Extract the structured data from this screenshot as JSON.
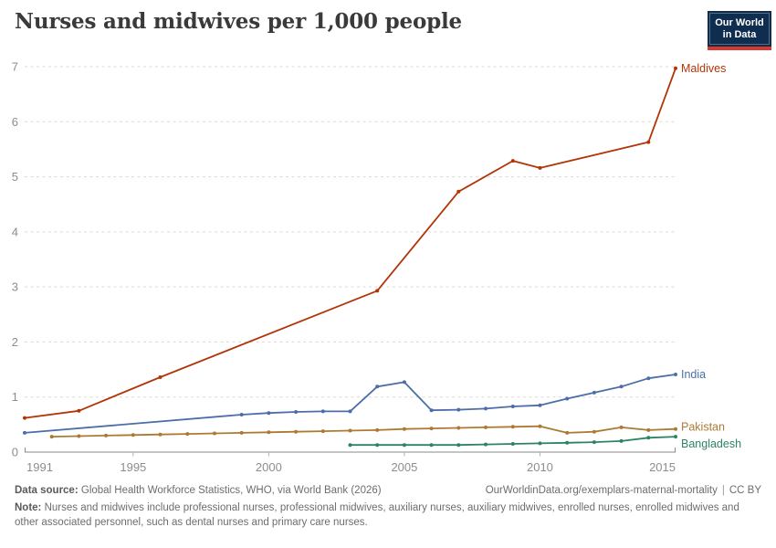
{
  "header": {
    "title": "Nurses and midwives per 1,000 people"
  },
  "logo": {
    "line1": "Our World",
    "line2": "in Data",
    "bg_color": "#0f2d4e",
    "bar_color": "#d9382e"
  },
  "chart_data": {
    "type": "line",
    "title": "Nurses and midwives per 1,000 people",
    "xlabel": "",
    "ylabel": "",
    "xlim": [
      1991,
      2015
    ],
    "ylim": [
      0,
      7
    ],
    "xticks": [
      1991,
      1995,
      2000,
      2005,
      2010,
      2015
    ],
    "yticks": [
      0,
      1,
      2,
      3,
      4,
      5,
      6,
      7
    ],
    "grid": "dashed-horizontal",
    "legend_position": "right-end-labels",
    "series": [
      {
        "name": "Maldives",
        "color": "#b13507",
        "points": [
          [
            1991,
            0.62
          ],
          [
            1993,
            0.75
          ],
          [
            1996,
            1.36
          ],
          [
            2004,
            2.93
          ],
          [
            2007,
            4.73
          ],
          [
            2009,
            5.29
          ],
          [
            2010,
            5.16
          ],
          [
            2014,
            5.63
          ],
          [
            2015,
            6.97
          ]
        ]
      },
      {
        "name": "India",
        "color": "#4c6ea8",
        "points": [
          [
            1991,
            0.35
          ],
          [
            1999,
            0.68
          ],
          [
            2000,
            0.71
          ],
          [
            2001,
            0.73
          ],
          [
            2002,
            0.74
          ],
          [
            2003,
            0.74
          ],
          [
            2004,
            1.19
          ],
          [
            2005,
            1.27
          ],
          [
            2006,
            0.76
          ],
          [
            2007,
            0.77
          ],
          [
            2008,
            0.79
          ],
          [
            2009,
            0.83
          ],
          [
            2010,
            0.85
          ],
          [
            2011,
            0.97
          ],
          [
            2012,
            1.08
          ],
          [
            2013,
            1.19
          ],
          [
            2014,
            1.34
          ],
          [
            2015,
            1.41
          ]
        ]
      },
      {
        "name": "Pakistan",
        "color": "#ab7b34",
        "points": [
          [
            1992,
            0.28
          ],
          [
            1993,
            0.29
          ],
          [
            1994,
            0.3
          ],
          [
            1995,
            0.31
          ],
          [
            1996,
            0.32
          ],
          [
            1997,
            0.33
          ],
          [
            1998,
            0.34
          ],
          [
            1999,
            0.35
          ],
          [
            2000,
            0.36
          ],
          [
            2001,
            0.37
          ],
          [
            2002,
            0.38
          ],
          [
            2003,
            0.39
          ],
          [
            2004,
            0.4
          ],
          [
            2005,
            0.42
          ],
          [
            2006,
            0.43
          ],
          [
            2007,
            0.44
          ],
          [
            2008,
            0.45
          ],
          [
            2009,
            0.46
          ],
          [
            2010,
            0.47
          ],
          [
            2011,
            0.35
          ],
          [
            2012,
            0.37
          ],
          [
            2013,
            0.45
          ],
          [
            2014,
            0.4
          ],
          [
            2015,
            0.42
          ]
        ]
      },
      {
        "name": "Bangladesh",
        "color": "#2c8465",
        "points": [
          [
            2003,
            0.13
          ],
          [
            2004,
            0.13
          ],
          [
            2005,
            0.13
          ],
          [
            2006,
            0.13
          ],
          [
            2007,
            0.13
          ],
          [
            2008,
            0.14
          ],
          [
            2009,
            0.15
          ],
          [
            2010,
            0.16
          ],
          [
            2011,
            0.17
          ],
          [
            2012,
            0.18
          ],
          [
            2013,
            0.2
          ],
          [
            2014,
            0.26
          ],
          [
            2015,
            0.28
          ]
        ]
      }
    ]
  },
  "footer": {
    "source_label": "Data source:",
    "source_text": "Global Health Workforce Statistics, WHO, via World Bank (2026)",
    "url": "OurWorldinData.org/exemplars-maternal-mortality",
    "divider": "|",
    "license": "CC BY",
    "note_label": "Note:",
    "note_text": "Nurses and midwives include professional nurses, professional midwives, auxiliary nurses, auxiliary midwives, enrolled nurses, enrolled midwives and other associated personnel, such as dental nurses and primary care nurses."
  }
}
